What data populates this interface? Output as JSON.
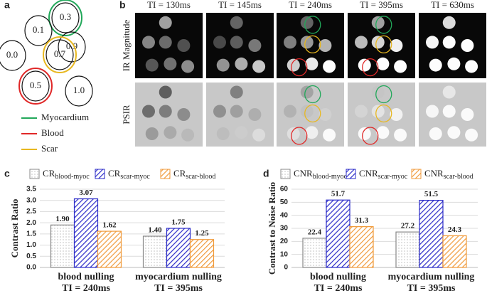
{
  "panel_labels": [
    "a",
    "b",
    "c",
    "d"
  ],
  "phantom": {
    "vials": [
      {
        "label": "0.3",
        "ring": "#22a85a"
      },
      {
        "label": "0.1"
      },
      {
        "label": "0.9"
      },
      {
        "label": "0.0"
      },
      {
        "label": "0.7",
        "ring": "#e8b820"
      },
      {
        "label": "0.5",
        "ring": "#e02828"
      },
      {
        "label": "1.0"
      }
    ],
    "legend": [
      {
        "label": "Myocardium",
        "color": "#22a85a"
      },
      {
        "label": "Blood",
        "color": "#e02828"
      },
      {
        "label": "Scar",
        "color": "#e8b820"
      }
    ]
  },
  "images": {
    "columns": [
      "TI = 130ms",
      "TI = 145ms",
      "TI = 240ms",
      "TI = 395ms",
      "TI = 630ms"
    ],
    "rows": [
      "IR Magnitude",
      "PSIR"
    ]
  },
  "chart_data": [
    {
      "type": "bar",
      "y_label": "Contrast Ratio",
      "categories": [
        [
          "blood nulling",
          "TI = 240ms"
        ],
        [
          "myocardium nulling",
          "TI = 395ms"
        ]
      ],
      "series": [
        {
          "name": "CR",
          "name_sub": "blood-myoc",
          "color": "#888888",
          "values": [
            1.9,
            1.4
          ],
          "value_labels": [
            "1.90",
            "1.40"
          ]
        },
        {
          "name": "CR",
          "name_sub": "scar-myoc",
          "color": "#2b2bc8",
          "values": [
            3.07,
            1.75
          ],
          "value_labels": [
            "3.07",
            "1.75"
          ]
        },
        {
          "name": "CR",
          "name_sub": "scar-blood",
          "color": "#f09a3a",
          "values": [
            1.62,
            1.25
          ],
          "value_labels": [
            "1.62",
            "1.25"
          ]
        }
      ],
      "ylim": [
        0,
        3.5
      ],
      "yticks": [
        {
          "value": 0,
          "label": "0.0"
        },
        0.5,
        {
          "value": 1,
          "label": "1.0"
        },
        1.5,
        {
          "value": 2,
          "label": "2.0"
        },
        2.5,
        {
          "value": 3,
          "label": "3.0"
        },
        3.5
      ]
    },
    {
      "type": "bar",
      "y_label": "Contrast to Noise Ratio",
      "categories": [
        [
          "blood nulling",
          "TI = 240ms"
        ],
        [
          "myocardium nulling",
          "TI = 395ms"
        ]
      ],
      "series": [
        {
          "name": "CNR",
          "name_sub": "blood-myoc",
          "color": "#888888",
          "values": [
            22.4,
            27.2
          ]
        },
        {
          "name": "CNR",
          "name_sub": "scar-myoc",
          "color": "#2b2bc8",
          "values": [
            51.7,
            51.5
          ]
        },
        {
          "name": "CNR",
          "name_sub": "scar-blood",
          "color": "#f09a3a",
          "values": [
            31.3,
            24.3
          ]
        }
      ],
      "ylim": [
        0,
        60
      ],
      "yticks": [
        0,
        10,
        20,
        30,
        40,
        50,
        60
      ]
    }
  ]
}
